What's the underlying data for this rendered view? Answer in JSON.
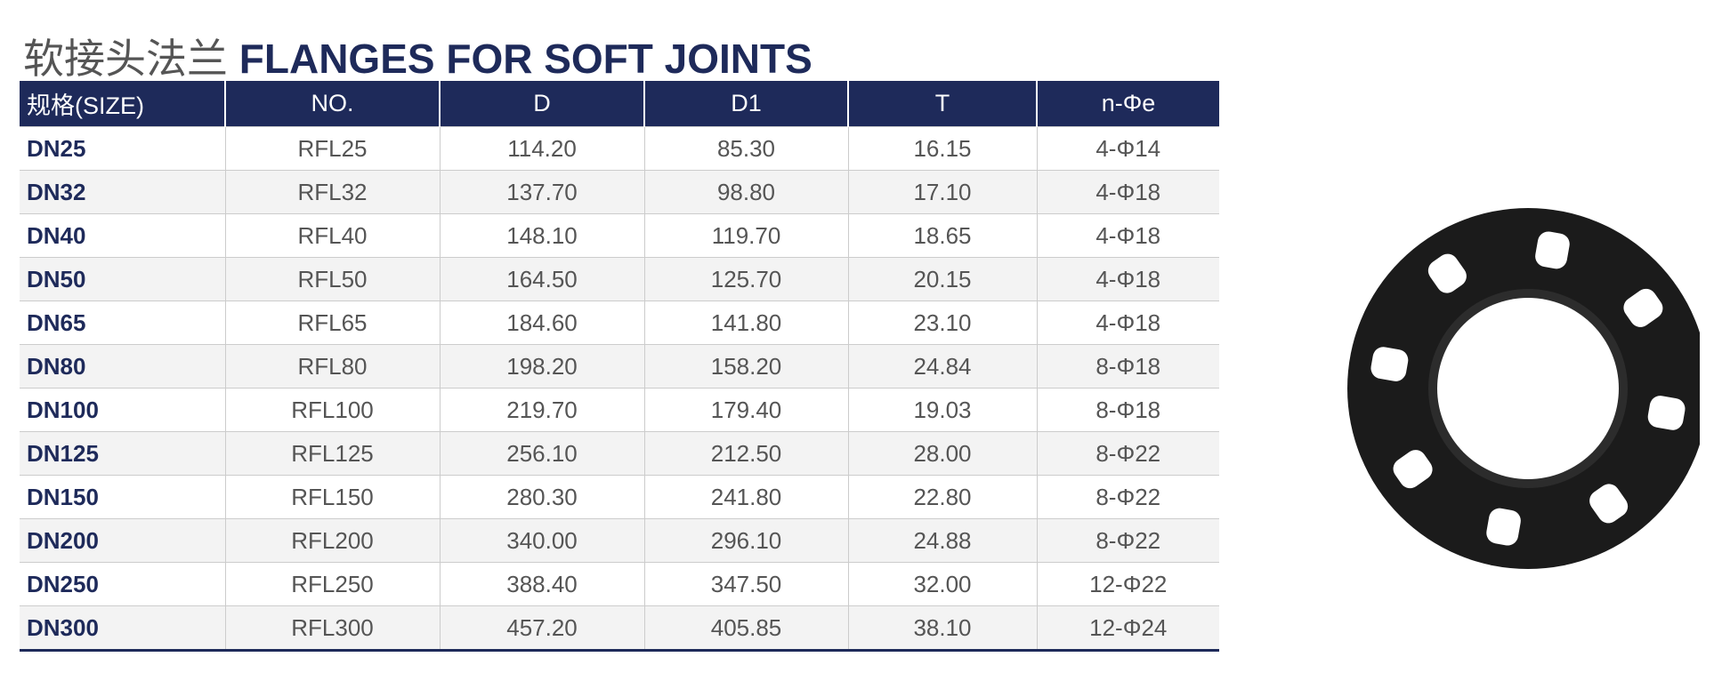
{
  "title": {
    "cn": "软接头法兰",
    "en": "FLANGES FOR SOFT JOINTS"
  },
  "table": {
    "header": [
      "规格(SIZE)",
      "NO.",
      "D",
      "D1",
      "T",
      "n-Φe"
    ],
    "rows": [
      [
        "DN25",
        "RFL25",
        "114.20",
        "85.30",
        "16.15",
        "4-Φ14"
      ],
      [
        "DN32",
        "RFL32",
        "137.70",
        "98.80",
        "17.10",
        "4-Φ18"
      ],
      [
        "DN40",
        "RFL40",
        "148.10",
        "119.70",
        "18.65",
        "4-Φ18"
      ],
      [
        "DN50",
        "RFL50",
        "164.50",
        "125.70",
        "20.15",
        "4-Φ18"
      ],
      [
        "DN65",
        "RFL65",
        "184.60",
        "141.80",
        "23.10",
        "4-Φ18"
      ],
      [
        "DN80",
        "RFL80",
        "198.20",
        "158.20",
        "24.84",
        "8-Φ18"
      ],
      [
        "DN100",
        "RFL100",
        "219.70",
        "179.40",
        "19.03",
        "8-Φ18"
      ],
      [
        "DN125",
        "RFL125",
        "256.10",
        "212.50",
        "28.00",
        "8-Φ22"
      ],
      [
        "DN150",
        "RFL150",
        "280.30",
        "241.80",
        "22.80",
        "8-Φ22"
      ],
      [
        "DN200",
        "RFL200",
        "340.00",
        "296.10",
        "24.88",
        "8-Φ22"
      ],
      [
        "DN250",
        "RFL250",
        "388.40",
        "347.50",
        "32.00",
        "12-Φ22"
      ],
      [
        "DN300",
        "RFL300",
        "457.20",
        "405.85",
        "38.10",
        "12-Φ24"
      ]
    ]
  }
}
